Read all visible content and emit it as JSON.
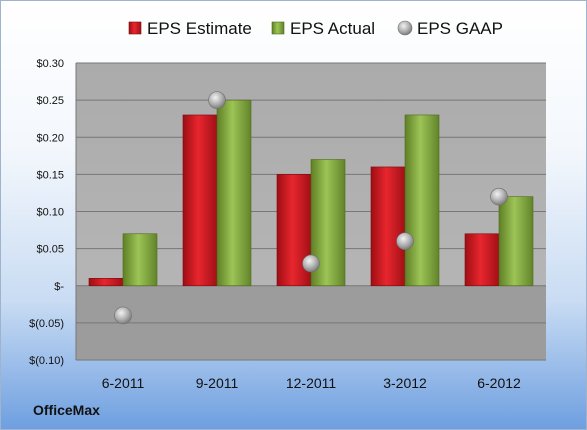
{
  "company": "OfficeMax",
  "chart_data": {
    "type": "bar",
    "categories": [
      "6-2011",
      "9-2011",
      "12-2011",
      "3-2012",
      "6-2012"
    ],
    "series": [
      {
        "name": "EPS Estimate",
        "type": "bar",
        "color": "#c8121b",
        "values": [
          0.01,
          0.23,
          0.15,
          0.16,
          0.07
        ]
      },
      {
        "name": "EPS Actual",
        "type": "bar",
        "color": "#7ea33a",
        "values": [
          0.07,
          0.25,
          0.17,
          0.23,
          0.12
        ]
      },
      {
        "name": "EPS GAAP",
        "type": "scatter",
        "color": "#a6a6a6",
        "values": [
          -0.04,
          0.25,
          0.03,
          0.06,
          0.12
        ]
      }
    ],
    "yticks": [
      0.3,
      0.25,
      0.2,
      0.15,
      0.1,
      0.05,
      0,
      -0.05,
      -0.1
    ],
    "ytick_labels": [
      "$0.30",
      "$0.25",
      "$0.20",
      "$0.15",
      "$0.10",
      "$0.05",
      "$-",
      "$(0.05)",
      "$(0.10)"
    ],
    "ylim": [
      -0.1,
      0.3
    ],
    "grid": true,
    "legend_position": "top"
  }
}
